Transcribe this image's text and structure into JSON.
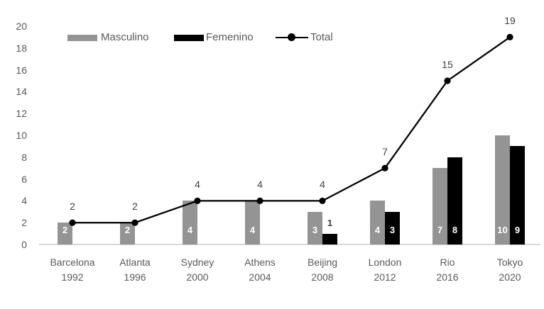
{
  "chart_data": {
    "type": "bar",
    "subtype": "combo-bars-with-line-overlay",
    "title": "",
    "categories": [
      "Barcelona",
      "Atlanta",
      "Sydney",
      "Athens",
      "Beijing",
      "London",
      "Rio",
      "Tokyo"
    ],
    "category_years": [
      "1992",
      "1996",
      "2000",
      "2004",
      "2008",
      "2012",
      "2016",
      "2020"
    ],
    "series": [
      {
        "name": "Masculino",
        "type": "bar",
        "color": "#949494",
        "values": [
          2,
          2,
          4,
          4,
          3,
          4,
          7,
          10
        ]
      },
      {
        "name": "Femenino",
        "type": "bar",
        "color": "#000000",
        "values": [
          0,
          0,
          0,
          0,
          1,
          3,
          8,
          9
        ]
      },
      {
        "name": "Total",
        "type": "line",
        "color": "#000000",
        "marker": "filled-circle",
        "values": [
          2,
          2,
          4,
          4,
          4,
          7,
          15,
          19
        ]
      }
    ],
    "ylim": [
      0,
      20
    ],
    "ytick_step": 2,
    "ytick_labels": [
      "0",
      "2",
      "4",
      "6",
      "8",
      "10",
      "12",
      "14",
      "16",
      "18",
      "20"
    ],
    "grid": false,
    "data_labels": true,
    "zero_values_hidden": true,
    "legend_position": "top",
    "colors": {
      "axis_text": "#595959",
      "data_label_dark": "#3d3d3d",
      "total_label": "#404040",
      "bar_label_light": "#ffffff",
      "baseline": "#d9d9d9",
      "background": "#ffffff"
    }
  }
}
